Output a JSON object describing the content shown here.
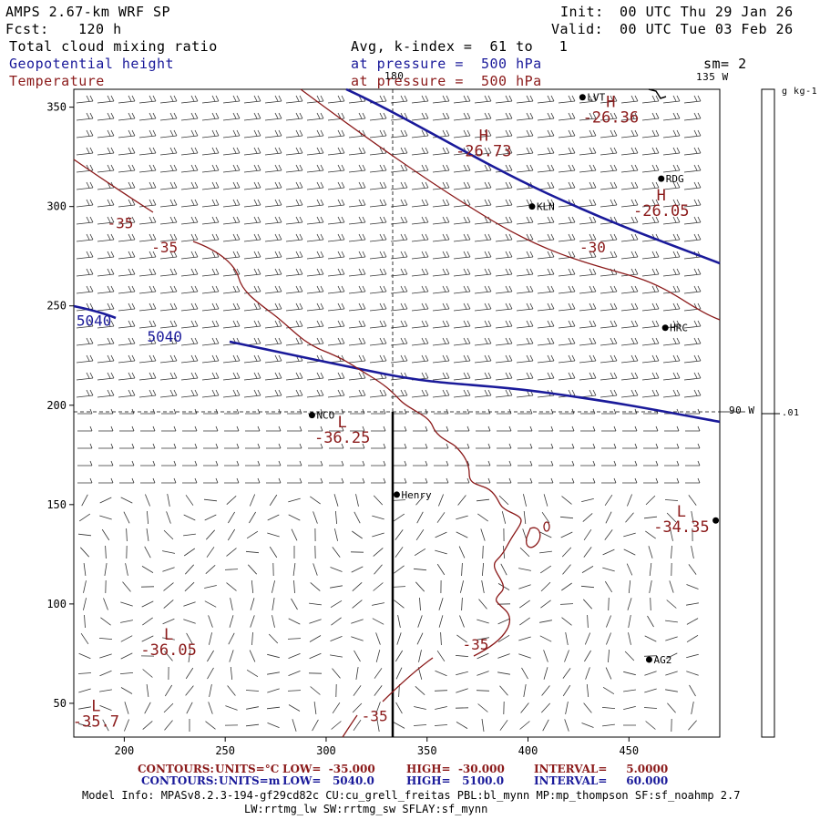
{
  "header": {
    "model": "AMPS 2.67-km WRF SP",
    "fcst_label": "Fcst:",
    "fcst_value": "120 h",
    "init_label": "Init:",
    "init_value": "00 UTC Thu 29 Jan 26",
    "valid_label": "Valid:",
    "valid_value": "00 UTC Tue 03 Feb 26",
    "field1": "Total cloud mixing ratio",
    "field1_avg": "Avg, k-index =  61 to   1",
    "field2": "Geopotential height",
    "field2_level": "at pressure =  500 hPa",
    "field3": "Temperature",
    "field3_level": "at pressure =  500 hPa",
    "smoothing": "sm= 2"
  },
  "colors": {
    "height": "#1a1a9a",
    "temperature": "#8b1a1a",
    "text": "#000000"
  },
  "map": {
    "meridian_labels": [
      "180",
      "135 W",
      "90 W"
    ],
    "x_ticks": [
      "200",
      "250",
      "300",
      "350",
      "400",
      "450"
    ],
    "y_ticks": [
      "350",
      "300",
      "250",
      "200",
      "150",
      "100",
      "50"
    ],
    "x_tick_values": [
      200,
      250,
      300,
      350,
      400,
      450
    ],
    "y_tick_values": [
      350,
      300,
      250,
      200,
      150,
      100,
      50
    ],
    "x_range": [
      175,
      495
    ],
    "y_range": [
      33,
      359
    ],
    "stations": [
      {
        "name": "LVT",
        "x": 427,
        "y": 355
      },
      {
        "name": "RDG",
        "x": 466,
        "y": 314
      },
      {
        "name": "KLN",
        "x": 402,
        "y": 300
      },
      {
        "name": "HRC",
        "x": 468,
        "y": 239
      },
      {
        "name": "NCO",
        "x": 293,
        "y": 195
      },
      {
        "name": "Henry",
        "x": 335,
        "y": 155
      },
      {
        "name": "AG2",
        "x": 460,
        "y": 72
      },
      {
        "name": "",
        "x": 493,
        "y": 142
      }
    ],
    "highs_lows": [
      {
        "symbol": "H",
        "value": "-26.73",
        "x": 378,
        "y": 333
      },
      {
        "symbol": "H",
        "value": "-26.36",
        "x": 441,
        "y": 350
      },
      {
        "symbol": "H",
        "value": "-26.05",
        "x": 466,
        "y": 303
      },
      {
        "symbol": "L",
        "value": "-36.25",
        "x": 308,
        "y": 189
      },
      {
        "symbol": "L",
        "value": "-34.35",
        "x": 476,
        "y": 144
      },
      {
        "symbol": "L",
        "value": "-36.05",
        "x": 222,
        "y": 82
      },
      {
        "symbol": "L",
        "value": "-35.7",
        "x": 186,
        "y": 46
      }
    ],
    "contour_labels": [
      {
        "text": "-35",
        "x": 198,
        "y": 289,
        "field": "temperature"
      },
      {
        "text": "-35",
        "x": 220,
        "y": 277,
        "field": "temperature"
      },
      {
        "text": "-30",
        "x": 432,
        "y": 277,
        "field": "temperature"
      },
      {
        "text": "-35",
        "x": 374,
        "y": 77,
        "field": "temperature"
      },
      {
        "text": "-35",
        "x": 324,
        "y": 41,
        "field": "temperature"
      },
      {
        "text": "5040",
        "x": 185,
        "y": 240,
        "field": "height"
      },
      {
        "text": "5040",
        "x": 220,
        "y": 232,
        "field": "height"
      }
    ],
    "colorbar": {
      "unit_label": "g kg-1",
      "tick_label": ".01"
    }
  },
  "legend": {
    "row1_label": "CONTOURS:",
    "row1_units": "UNITS=°C",
    "row1_low": "LOW=  -35.000",
    "row1_high": "HIGH=  -30.000",
    "row1_interval": "INTERVAL=     5.0000",
    "row2_label": "CONTOURS:",
    "row2_units": "UNITS=m",
    "row2_low": "LOW=   5040.0",
    "row2_high": "HIGH=   5100.0",
    "row2_interval": "INTERVAL=     60.000"
  },
  "model_info": {
    "line1": "Model Info: MPASv8.2.3-194-gf29cd82c CU:cu_grell_freitas PBL:bl_mynn MP:mp_thompson SF:sf_noahmp 2.7",
    "line2": "LW:rrtmg_lw SW:rrtmg_sw SFLAY:sf_mynn"
  }
}
